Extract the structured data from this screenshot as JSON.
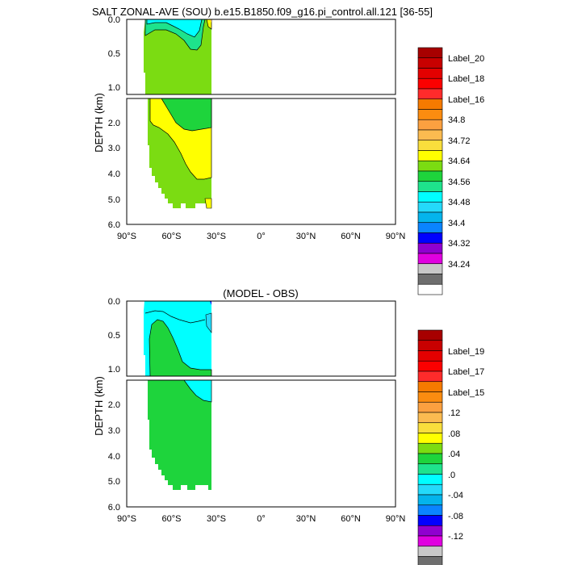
{
  "chart_data": [
    {
      "type": "heatmap",
      "title": "SALT ZONAL-AVE (SOU) b.e15.B1850.f09_g16.pi_control.all.121 [36-55]",
      "ylabel": "DEPTH (km)",
      "x_ticks": [
        "90°S",
        "60°S",
        "30°S",
        "0°",
        "30°N",
        "60°N",
        "90°N"
      ],
      "y_ticks_upper": [
        "0.0",
        "0.5",
        "1.0"
      ],
      "y_ticks_lower": [
        "2.0",
        "3.0",
        "4.0",
        "5.0",
        "6.0"
      ],
      "xlim": [
        -90,
        90
      ],
      "ylim_upper_km": [
        0,
        1.15
      ],
      "ylim_lower_km": [
        1.15,
        6.0
      ],
      "data_lat_range": [
        -76,
        -33
      ],
      "legend_labels": [
        "Label_20",
        "Label_18",
        "Label_16",
        "34.8",
        "34.72",
        "34.64",
        "34.56",
        "34.48",
        "34.4",
        "34.32",
        "34.24"
      ],
      "legend_placement": "right",
      "levels_colors": [
        "#a70000",
        "#c80000",
        "#e30000",
        "#fb0000",
        "#ff2b2b",
        "#f57a00",
        "#fb8c10",
        "#fba040",
        "#fbbb50",
        "#f9de3c",
        "#ffff00",
        "#7bdc12",
        "#1ed43c",
        "#1ee38c",
        "#00ffff",
        "#24dafa",
        "#04b4ec",
        "#0a84ff",
        "#0000ff",
        "#9000d0",
        "#e000e0",
        "#c8c8c8",
        "#6e6e6e",
        "#ffffff"
      ]
    },
    {
      "type": "heatmap",
      "title": "(MODEL - OBS)",
      "ylabel": "DEPTH (km)",
      "x_ticks": [
        "90°S",
        "60°S",
        "30°S",
        "0°",
        "30°N",
        "60°N",
        "90°N"
      ],
      "y_ticks_upper": [
        "0.0",
        "0.5",
        "1.0"
      ],
      "y_ticks_lower": [
        "2.0",
        "3.0",
        "4.0",
        "5.0",
        "6.0"
      ],
      "xlim": [
        -90,
        90
      ],
      "ylim_upper_km": [
        0,
        1.15
      ],
      "ylim_lower_km": [
        1.15,
        6.0
      ],
      "data_lat_range": [
        -76,
        -33
      ],
      "legend_labels": [
        "Label_19",
        "Label_17",
        "Label_15",
        ".12",
        ".08",
        ".04",
        ".0",
        "-.04",
        "-.08",
        "-.12"
      ],
      "legend_placement": "right",
      "levels_colors": [
        "#a70000",
        "#c80000",
        "#e30000",
        "#fb0000",
        "#ff2b2b",
        "#f57a00",
        "#fb8c10",
        "#fba040",
        "#fbbb50",
        "#f9de3c",
        "#ffff00",
        "#7bdc12",
        "#1ed43c",
        "#1ee38c",
        "#00ffff",
        "#24dafa",
        "#04b4ec",
        "#0a84ff",
        "#0000ff",
        "#9000d0",
        "#e000e0",
        "#c8c8c8",
        "#6e6e6e",
        "#ffffff"
      ]
    }
  ]
}
